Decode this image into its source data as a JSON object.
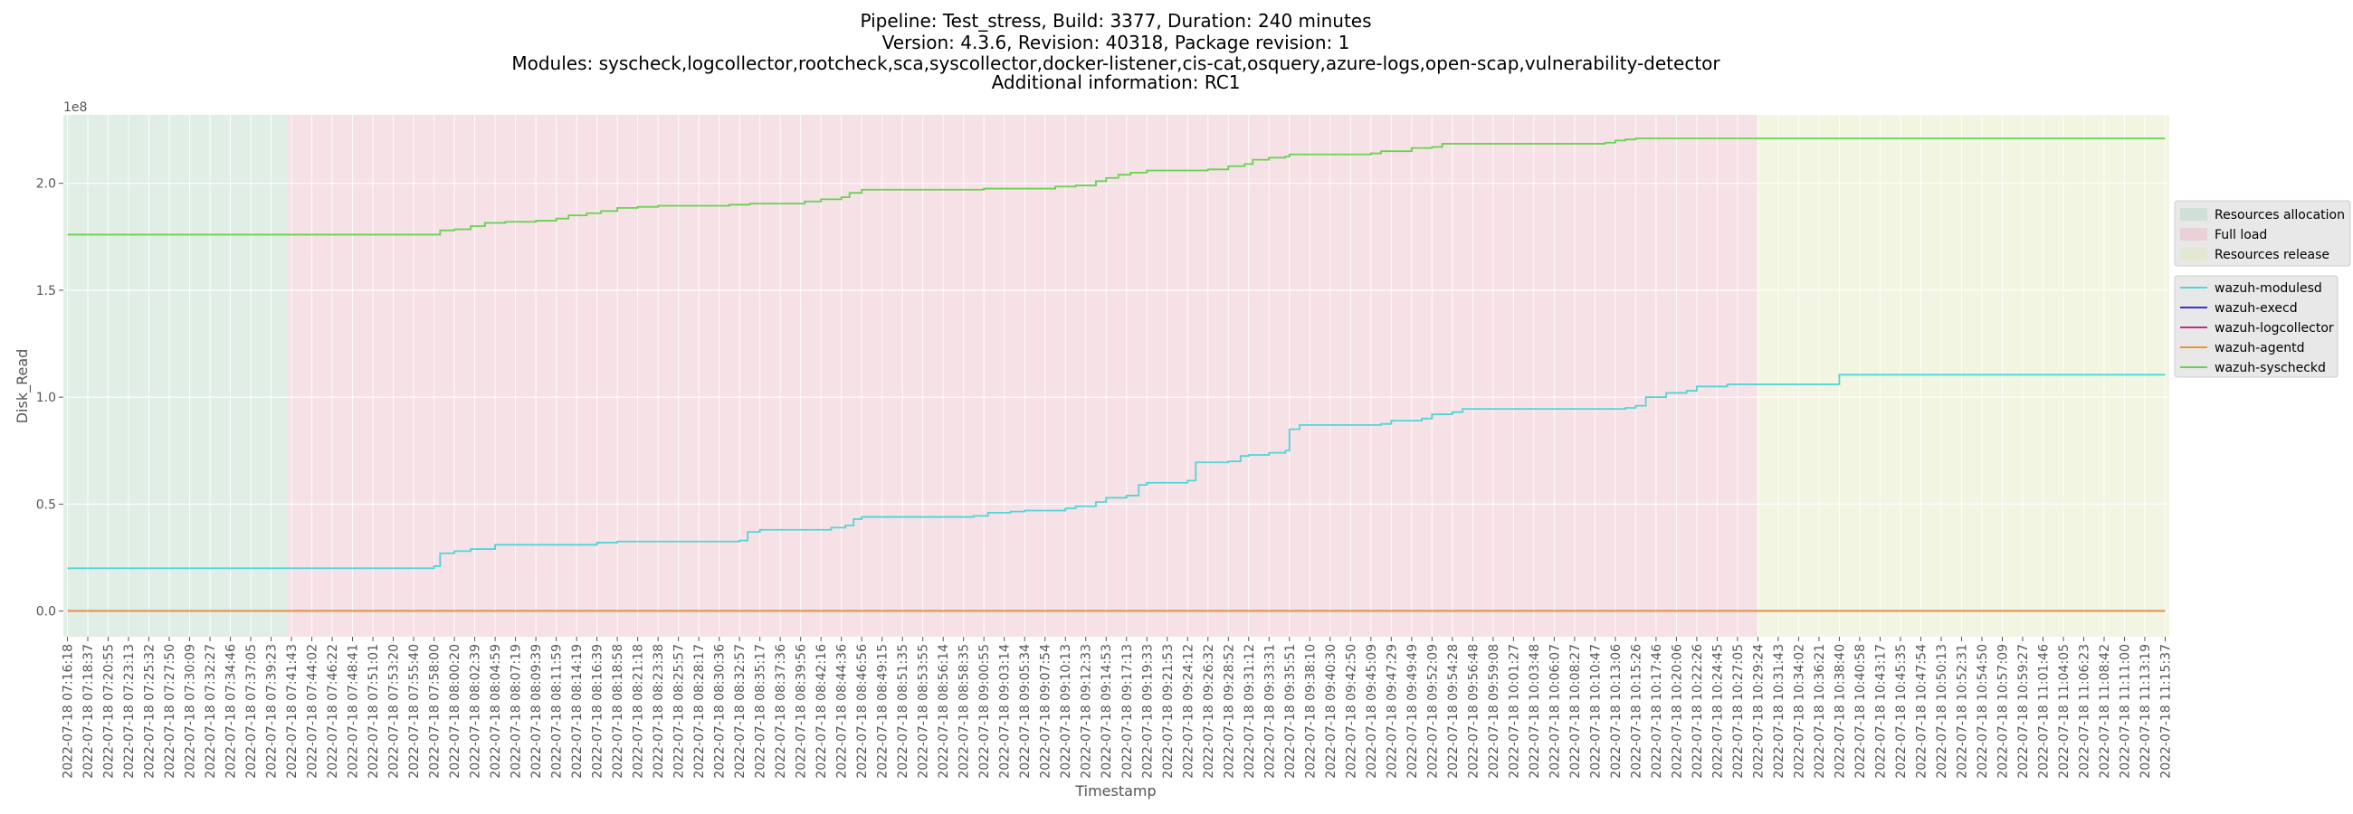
{
  "chart_data": {
    "type": "line",
    "title_lines": [
      "Pipeline: Test_stress, Build: 3377, Duration: 240 minutes",
      "Version: 4.3.6, Revision: 40318, Package revision: 1",
      "Modules: syscheck,logcollector,rootcheck,sca,syscollector,docker-listener,cis-cat,osquery,azure-logs,open-scap,vulnerability-detector",
      "Additional information: RC1"
    ],
    "xlabel": "Timestamp",
    "ylabel": "Disk_Read",
    "y_offset_label": "1e8",
    "ylim": [
      -0.12,
      2.32
    ],
    "yticks": [
      "0.0",
      "0.5",
      "1.0",
      "1.5",
      "2.0"
    ],
    "ytick_values": [
      0.0,
      0.5,
      1.0,
      1.5,
      2.0
    ],
    "grid": true,
    "legend_position": "right",
    "x_ticks": [
      "2022-07-18 07:16:18",
      "2022-07-18 07:18:37",
      "2022-07-18 07:20:55",
      "2022-07-18 07:23:13",
      "2022-07-18 07:25:32",
      "2022-07-18 07:27:50",
      "2022-07-18 07:30:09",
      "2022-07-18 07:32:27",
      "2022-07-18 07:34:46",
      "2022-07-18 07:37:05",
      "2022-07-18 07:39:23",
      "2022-07-18 07:41:43",
      "2022-07-18 07:44:02",
      "2022-07-18 07:46:22",
      "2022-07-18 07:48:41",
      "2022-07-18 07:51:01",
      "2022-07-18 07:53:20",
      "2022-07-18 07:55:40",
      "2022-07-18 07:58:00",
      "2022-07-18 08:00:20",
      "2022-07-18 08:02:39",
      "2022-07-18 08:04:59",
      "2022-07-18 08:07:19",
      "2022-07-18 08:09:39",
      "2022-07-18 08:11:59",
      "2022-07-18 08:14:19",
      "2022-07-18 08:16:39",
      "2022-07-18 08:18:58",
      "2022-07-18 08:21:18",
      "2022-07-18 08:23:38",
      "2022-07-18 08:25:57",
      "2022-07-18 08:28:17",
      "2022-07-18 08:30:36",
      "2022-07-18 08:32:57",
      "2022-07-18 08:35:17",
      "2022-07-18 08:37:36",
      "2022-07-18 08:39:56",
      "2022-07-18 08:42:16",
      "2022-07-18 08:44:36",
      "2022-07-18 08:46:56",
      "2022-07-18 08:49:15",
      "2022-07-18 08:51:35",
      "2022-07-18 08:53:55",
      "2022-07-18 08:56:14",
      "2022-07-18 08:58:35",
      "2022-07-18 09:00:55",
      "2022-07-18 09:03:14",
      "2022-07-18 09:05:34",
      "2022-07-18 09:07:54",
      "2022-07-18 09:10:13",
      "2022-07-18 09:12:33",
      "2022-07-18 09:14:53",
      "2022-07-18 09:17:13",
      "2022-07-18 09:19:33",
      "2022-07-18 09:21:53",
      "2022-07-18 09:24:12",
      "2022-07-18 09:26:32",
      "2022-07-18 09:28:52",
      "2022-07-18 09:31:12",
      "2022-07-18 09:33:31",
      "2022-07-18 09:35:51",
      "2022-07-18 09:38:10",
      "2022-07-18 09:40:30",
      "2022-07-18 09:42:50",
      "2022-07-18 09:45:09",
      "2022-07-18 09:47:29",
      "2022-07-18 09:49:49",
      "2022-07-18 09:52:09",
      "2022-07-18 09:54:28",
      "2022-07-18 09:56:48",
      "2022-07-18 09:59:08",
      "2022-07-18 10:01:27",
      "2022-07-18 10:03:48",
      "2022-07-18 10:06:07",
      "2022-07-18 10:08:27",
      "2022-07-18 10:10:47",
      "2022-07-18 10:13:06",
      "2022-07-18 10:15:26",
      "2022-07-18 10:17:46",
      "2022-07-18 10:20:06",
      "2022-07-18 10:22:26",
      "2022-07-18 10:24:45",
      "2022-07-18 10:27:05",
      "2022-07-18 10:29:24",
      "2022-07-18 10:31:43",
      "2022-07-18 10:34:02",
      "2022-07-18 10:36:21",
      "2022-07-18 10:38:40",
      "2022-07-18 10:40:58",
      "2022-07-18 10:43:17",
      "2022-07-18 10:45:35",
      "2022-07-18 10:47:54",
      "2022-07-18 10:50:13",
      "2022-07-18 10:52:31",
      "2022-07-18 10:54:50",
      "2022-07-18 10:57:09",
      "2022-07-18 10:59:27",
      "2022-07-18 11:01:46",
      "2022-07-18 11:04:05",
      "2022-07-18 11:06:23",
      "2022-07-18 11:08:42",
      "2022-07-18 11:11:00",
      "2022-07-18 11:13:19",
      "2022-07-18 11:15:37"
    ],
    "x_range_index": [
      -0.2,
      103.2
    ],
    "phases": [
      {
        "name": "Resources allocation",
        "color": "#b4d7c4",
        "start_index": -0.2,
        "end_index": 10.8
      },
      {
        "name": "Full load",
        "color": "#e9b8c4",
        "start_index": 10.8,
        "end_index": 83.0
      },
      {
        "name": "Resources release",
        "color": "#e0e8b8",
        "start_index": 83.0,
        "end_index": 103.2
      }
    ],
    "series": [
      {
        "name": "wazuh-modulesd",
        "color": "#4fd6d6",
        "points": [
          [
            0,
            0.2
          ],
          [
            17.8,
            0.2
          ],
          [
            18.0,
            0.21
          ],
          [
            18.3,
            0.27
          ],
          [
            19.0,
            0.28
          ],
          [
            19.8,
            0.29
          ],
          [
            21.0,
            0.31
          ],
          [
            26.0,
            0.32
          ],
          [
            27.0,
            0.325
          ],
          [
            33.0,
            0.33
          ],
          [
            33.4,
            0.37
          ],
          [
            34.0,
            0.38
          ],
          [
            37.5,
            0.39
          ],
          [
            38.2,
            0.4
          ],
          [
            38.6,
            0.43
          ],
          [
            39.0,
            0.44
          ],
          [
            44.5,
            0.445
          ],
          [
            45.2,
            0.46
          ],
          [
            46.3,
            0.465
          ],
          [
            47.0,
            0.47
          ],
          [
            49.0,
            0.48
          ],
          [
            49.5,
            0.49
          ],
          [
            50.5,
            0.51
          ],
          [
            51.0,
            0.53
          ],
          [
            52.0,
            0.54
          ],
          [
            52.6,
            0.59
          ],
          [
            53.0,
            0.6
          ],
          [
            55.0,
            0.61
          ],
          [
            55.4,
            0.695
          ],
          [
            57.0,
            0.7
          ],
          [
            57.6,
            0.725
          ],
          [
            58.0,
            0.73
          ],
          [
            59.0,
            0.74
          ],
          [
            59.8,
            0.75
          ],
          [
            60.0,
            0.85
          ],
          [
            60.5,
            0.87
          ],
          [
            64.5,
            0.875
          ],
          [
            65.0,
            0.89
          ],
          [
            66.5,
            0.9
          ],
          [
            67.0,
            0.92
          ],
          [
            68.0,
            0.93
          ],
          [
            68.5,
            0.945
          ],
          [
            76.5,
            0.95
          ],
          [
            77.0,
            0.96
          ],
          [
            77.5,
            1.0
          ],
          [
            78.5,
            1.02
          ],
          [
            79.5,
            1.03
          ],
          [
            80.0,
            1.05
          ],
          [
            81.5,
            1.06
          ],
          [
            86.5,
            1.06
          ],
          [
            87.0,
            1.105
          ],
          [
            103.0,
            1.105
          ]
        ]
      },
      {
        "name": "wazuh-execd",
        "color": "#3b2fd8",
        "points": [
          [
            0,
            0.0
          ],
          [
            103.0,
            0.0
          ]
        ]
      },
      {
        "name": "wazuh-logcollector",
        "color": "#c0307c",
        "points": [
          [
            0,
            0.0
          ],
          [
            103.0,
            0.0
          ]
        ]
      },
      {
        "name": "wazuh-agentd",
        "color": "#e8963c",
        "points": [
          [
            0,
            0.0
          ],
          [
            103.0,
            0.0
          ]
        ]
      },
      {
        "name": "wazuh-syscheckd",
        "color": "#66d34f",
        "points": [
          [
            0,
            1.76
          ],
          [
            18.0,
            1.76
          ],
          [
            18.3,
            1.78
          ],
          [
            19.0,
            1.785
          ],
          [
            19.8,
            1.8
          ],
          [
            20.5,
            1.815
          ],
          [
            21.5,
            1.82
          ],
          [
            23.0,
            1.825
          ],
          [
            24.0,
            1.835
          ],
          [
            24.6,
            1.85
          ],
          [
            25.5,
            1.86
          ],
          [
            26.2,
            1.87
          ],
          [
            27.0,
            1.885
          ],
          [
            28.0,
            1.89
          ],
          [
            29.0,
            1.895
          ],
          [
            32.5,
            1.9
          ],
          [
            33.5,
            1.905
          ],
          [
            36.2,
            1.915
          ],
          [
            37.0,
            1.925
          ],
          [
            38.0,
            1.935
          ],
          [
            38.4,
            1.955
          ],
          [
            39.0,
            1.97
          ],
          [
            45.0,
            1.975
          ],
          [
            48.5,
            1.985
          ],
          [
            49.5,
            1.99
          ],
          [
            50.5,
            2.01
          ],
          [
            51.0,
            2.025
          ],
          [
            51.6,
            2.04
          ],
          [
            52.2,
            2.05
          ],
          [
            53.0,
            2.06
          ],
          [
            56.0,
            2.065
          ],
          [
            57.0,
            2.08
          ],
          [
            57.8,
            2.09
          ],
          [
            58.2,
            2.11
          ],
          [
            59.0,
            2.12
          ],
          [
            59.8,
            2.125
          ],
          [
            60.0,
            2.135
          ],
          [
            64.0,
            2.14
          ],
          [
            64.5,
            2.15
          ],
          [
            66.0,
            2.165
          ],
          [
            67.0,
            2.17
          ],
          [
            67.5,
            2.185
          ],
          [
            75.5,
            2.19
          ],
          [
            76.0,
            2.2
          ],
          [
            76.5,
            2.205
          ],
          [
            77.0,
            2.21
          ],
          [
            83.0,
            2.21
          ],
          [
            103.0,
            2.21
          ]
        ]
      }
    ]
  }
}
